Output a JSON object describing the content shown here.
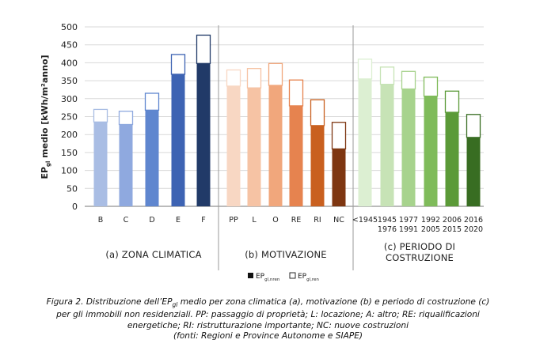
{
  "chart_data": {
    "type": "bar",
    "ylabel": "EP",
    "ylabel_sub": "gl",
    "ylabel_rest": " medio [kWh/m²anno]",
    "ylim": [
      0,
      500
    ],
    "yticks": [
      "0",
      "50",
      "100",
      "150",
      "200",
      "250",
      "300",
      "350",
      "400",
      "450",
      "500"
    ],
    "grid": true,
    "legend_position": "bottom-center",
    "series_names": [
      {
        "main": "EP",
        "sub": "gl,nren"
      },
      {
        "main": "EP",
        "sub": "gl,ren"
      }
    ],
    "groups": [
      {
        "title_lines": [
          "(a) ZONA CLIMATICA"
        ],
        "categories": [
          {
            "label": [
              "B"
            ],
            "nren": 235,
            "total": 270,
            "color": "#a9bde4"
          },
          {
            "label": [
              "C"
            ],
            "nren": 228,
            "total": 265,
            "color": "#8fa9df"
          },
          {
            "label": [
              "D"
            ],
            "nren": 268,
            "total": 315,
            "color": "#5f86cf"
          },
          {
            "label": [
              "E"
            ],
            "nren": 368,
            "total": 423,
            "color": "#3d63b3"
          },
          {
            "label": [
              "F"
            ],
            "nren": 398,
            "total": 477,
            "color": "#213a68"
          }
        ]
      },
      {
        "title_lines": [
          "(b) MOTIVAZIONE"
        ],
        "categories": [
          {
            "label": [
              "PP"
            ],
            "nren": 335,
            "total": 380,
            "color": "#f8d7c3"
          },
          {
            "label": [
              "L"
            ],
            "nren": 330,
            "total": 384,
            "color": "#f6c3a4"
          },
          {
            "label": [
              "O"
            ],
            "nren": 337,
            "total": 398,
            "color": "#f1a77c"
          },
          {
            "label": [
              "RE"
            ],
            "nren": 280,
            "total": 352,
            "color": "#e6834f"
          },
          {
            "label": [
              "RI"
            ],
            "nren": 225,
            "total": 297,
            "color": "#c9601f"
          },
          {
            "label": [
              "NC"
            ],
            "nren": 160,
            "total": 234,
            "color": "#7e3611"
          }
        ]
      },
      {
        "title_lines": [
          "(c) PERIODO DI",
          "COSTRUZIONE"
        ],
        "categories": [
          {
            "label": [
              "<1945"
            ],
            "nren": 355,
            "total": 410,
            "color": "#dcefd2"
          },
          {
            "label": [
              "1945",
              "1976"
            ],
            "nren": 340,
            "total": 388,
            "color": "#c7e3b6"
          },
          {
            "label": [
              "1977",
              "1991"
            ],
            "nren": 327,
            "total": 376,
            "color": "#a7d38d"
          },
          {
            "label": [
              "1992",
              "2005"
            ],
            "nren": 307,
            "total": 360,
            "color": "#7fbb5a"
          },
          {
            "label": [
              "2006",
              "2015"
            ],
            "nren": 262,
            "total": 321,
            "color": "#5b9a38"
          },
          {
            "label": [
              "2016",
              "2020"
            ],
            "nren": 192,
            "total": 256,
            "color": "#386d22"
          }
        ]
      }
    ]
  },
  "caption": {
    "line1a": "Figura 2. Distribuzione dell’EP",
    "line1sub": "gl",
    "line1b": " medio per zona climatica (a), motivazione (b) e periodo di costruzione (c)",
    "line2": "per gli immobili non residenziali. PP: passaggio di proprietà; L: locazione; A: altro; RE: riqualificazioni",
    "line3": "energetiche; RI: ristrutturazione importante; NC: nuove costruzioni",
    "line4": "(fonti: Regioni e Province Autonome e SIAPE)"
  }
}
